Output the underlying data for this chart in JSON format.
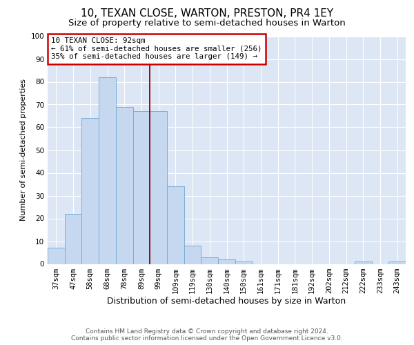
{
  "title": "10, TEXAN CLOSE, WARTON, PRESTON, PR4 1EY",
  "subtitle": "Size of property relative to semi-detached houses in Warton",
  "xlabel": "Distribution of semi-detached houses by size in Warton",
  "ylabel": "Number of semi-detached properties",
  "categories": [
    "37sqm",
    "47sqm",
    "58sqm",
    "68sqm",
    "78sqm",
    "89sqm",
    "99sqm",
    "109sqm",
    "119sqm",
    "130sqm",
    "140sqm",
    "150sqm",
    "161sqm",
    "171sqm",
    "181sqm",
    "192sqm",
    "202sqm",
    "212sqm",
    "222sqm",
    "233sqm",
    "243sqm"
  ],
  "values": [
    7,
    22,
    64,
    82,
    69,
    67,
    67,
    34,
    8,
    3,
    2,
    1,
    0,
    0,
    0,
    0,
    0,
    0,
    1,
    0,
    1
  ],
  "bar_color": "#c5d8f0",
  "bar_edge_color": "#7aadd4",
  "annotation_text_line1": "10 TEXAN CLOSE: 92sqm",
  "annotation_text_line2": "← 61% of semi-detached houses are smaller (256)",
  "annotation_text_line3": "35% of semi-detached houses are larger (149) →",
  "red_line_color": "#8b0000",
  "annotation_box_color": "#ffffff",
  "annotation_box_edge_color": "#cc0000",
  "ylim": [
    0,
    100
  ],
  "yticks": [
    0,
    10,
    20,
    30,
    40,
    50,
    60,
    70,
    80,
    90,
    100
  ],
  "background_color": "#dce6f5",
  "footer_line1": "Contains HM Land Registry data © Crown copyright and database right 2024.",
  "footer_line2": "Contains public sector information licensed under the Open Government Licence v3.0.",
  "title_fontsize": 11,
  "subtitle_fontsize": 9.5,
  "xlabel_fontsize": 9,
  "ylabel_fontsize": 8,
  "tick_fontsize": 7.5,
  "footer_fontsize": 6.5,
  "red_line_x": 5.5
}
